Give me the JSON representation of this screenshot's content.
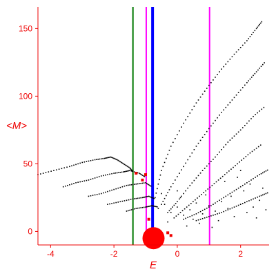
{
  "chart_data": {
    "type": "scatter",
    "title": "",
    "xlabel": "E",
    "ylabel": "<M>",
    "xlim": [
      -4.4,
      2.9
    ],
    "ylim": [
      -10,
      166
    ],
    "grid": false,
    "xticks": [
      -4,
      -2,
      0,
      2
    ],
    "yticks": [
      0,
      50,
      100,
      150
    ],
    "vertical_lines": [
      {
        "x": -1.4,
        "color": "#007700"
      },
      {
        "x": -0.98,
        "color": "#ff00ff"
      },
      {
        "x": -0.78,
        "color": "#0000ff"
      },
      {
        "x": 1.02,
        "color": "#ff00ff"
      }
    ],
    "red_points": [
      {
        "x": -0.75,
        "y": -5,
        "size": "large"
      },
      {
        "x": -0.9,
        "y": 9,
        "size": "small"
      },
      {
        "x": -1.3,
        "y": 43,
        "size": "small"
      },
      {
        "x": -1.1,
        "y": 38,
        "size": "small"
      },
      {
        "x": -1.0,
        "y": 42,
        "size": "small"
      },
      {
        "x": -0.2,
        "y": -3,
        "size": "small"
      },
      {
        "x": -0.3,
        "y": -1,
        "size": "small"
      }
    ],
    "band_curves": [
      {
        "name": "",
        "x": [
          -4.4,
          -3.9,
          -3.4,
          -3.0,
          -2.6,
          -2.3,
          -2.1,
          -1.9,
          -1.7,
          -1.5,
          -1.4
        ],
        "y": [
          42,
          45,
          48,
          51,
          53,
          54,
          55,
          53,
          50,
          47,
          44
        ]
      },
      {
        "name": "",
        "x": [
          -3.6,
          -3.2,
          -2.8,
          -2.4,
          -2.0,
          -1.7,
          -1.5,
          -1.2,
          -1.0
        ],
        "y": [
          33,
          36,
          38,
          41,
          43,
          44,
          45,
          43,
          40
        ]
      },
      {
        "name": "",
        "x": [
          -2.8,
          -2.4,
          -2.0,
          -1.6,
          -1.3,
          -1.0,
          -0.8
        ],
        "y": [
          26,
          28,
          31,
          34,
          35,
          36,
          33
        ]
      },
      {
        "name": "",
        "x": [
          -2.2,
          -1.8,
          -1.4,
          -1.1,
          -0.9,
          -0.7
        ],
        "y": [
          20,
          22,
          24,
          25,
          26,
          24
        ]
      },
      {
        "name": "",
        "x": [
          -1.6,
          -1.3,
          -1.0,
          -0.8,
          -0.6
        ],
        "y": [
          15,
          17,
          18,
          19,
          18
        ]
      },
      {
        "name": "",
        "x": [
          -0.7,
          -0.5,
          -0.2,
          0.2,
          0.6,
          1.0,
          1.4,
          1.8,
          2.2,
          2.5,
          2.7
        ],
        "y": [
          25,
          45,
          63,
          80,
          95,
          108,
          120,
          131,
          141,
          150,
          156
        ]
      },
      {
        "name": "",
        "x": [
          -0.5,
          -0.2,
          0.2,
          0.6,
          1.0,
          1.4,
          1.8,
          2.2,
          2.5,
          2.8
        ],
        "y": [
          20,
          33,
          48,
          63,
          76,
          88,
          99,
          110,
          118,
          126
        ]
      },
      {
        "name": "",
        "x": [
          -0.3,
          0.0,
          0.4,
          0.8,
          1.2,
          1.6,
          2.0,
          2.4,
          2.8
        ],
        "y": [
          14,
          22,
          34,
          45,
          55,
          66,
          75,
          85,
          93
        ]
      },
      {
        "name": "",
        "x": [
          -0.1,
          0.3,
          0.7,
          1.1,
          1.5,
          1.9,
          2.3,
          2.7
        ],
        "y": [
          10,
          18,
          26,
          34,
          42,
          50,
          58,
          65
        ]
      },
      {
        "name": "",
        "x": [
          0.2,
          0.6,
          1.0,
          1.4,
          1.8,
          2.2,
          2.6,
          2.9
        ],
        "y": [
          9,
          13,
          18,
          24,
          30,
          36,
          42,
          46
        ]
      },
      {
        "name": "",
        "x": [
          0.6,
          1.0,
          1.4,
          1.8,
          2.2,
          2.6,
          2.9
        ],
        "y": [
          8,
          11,
          14,
          18,
          22,
          26,
          29
        ]
      }
    ],
    "scatter_cloud": [
      {
        "x": -0.6,
        "y": 17
      },
      {
        "x": -0.4,
        "y": 20
      },
      {
        "x": -0.2,
        "y": 14
      },
      {
        "x": 0.0,
        "y": 18
      },
      {
        "x": 0.2,
        "y": 12
      },
      {
        "x": 0.4,
        "y": 16
      },
      {
        "x": 0.6,
        "y": 21
      },
      {
        "x": 0.8,
        "y": 13
      },
      {
        "x": 1.0,
        "y": 19
      },
      {
        "x": 1.2,
        "y": 15
      },
      {
        "x": 1.4,
        "y": 22
      },
      {
        "x": 1.6,
        "y": 17
      },
      {
        "x": 1.8,
        "y": 11
      },
      {
        "x": 2.0,
        "y": 20
      },
      {
        "x": 2.2,
        "y": 14
      },
      {
        "x": 2.4,
        "y": 18
      },
      {
        "x": 2.6,
        "y": 23
      },
      {
        "x": 2.8,
        "y": 16
      },
      {
        "x": 0.1,
        "y": 25
      },
      {
        "x": 0.5,
        "y": 9
      },
      {
        "x": 0.9,
        "y": 27
      },
      {
        "x": 1.3,
        "y": 8
      },
      {
        "x": 1.7,
        "y": 26
      },
      {
        "x": 2.1,
        "y": 30
      },
      {
        "x": 2.5,
        "y": 10
      },
      {
        "x": -0.3,
        "y": 7
      },
      {
        "x": 0.3,
        "y": 4
      },
      {
        "x": 0.7,
        "y": 6
      },
      {
        "x": 1.1,
        "y": 3
      },
      {
        "x": 2.3,
        "y": 35
      },
      {
        "x": 2.7,
        "y": 32
      },
      {
        "x": 1.9,
        "y": 40
      },
      {
        "x": 1.5,
        "y": 37
      },
      {
        "x": 2.0,
        "y": 45
      },
      {
        "x": 0.0,
        "y": 30
      },
      {
        "x": -0.5,
        "y": 28
      }
    ]
  }
}
